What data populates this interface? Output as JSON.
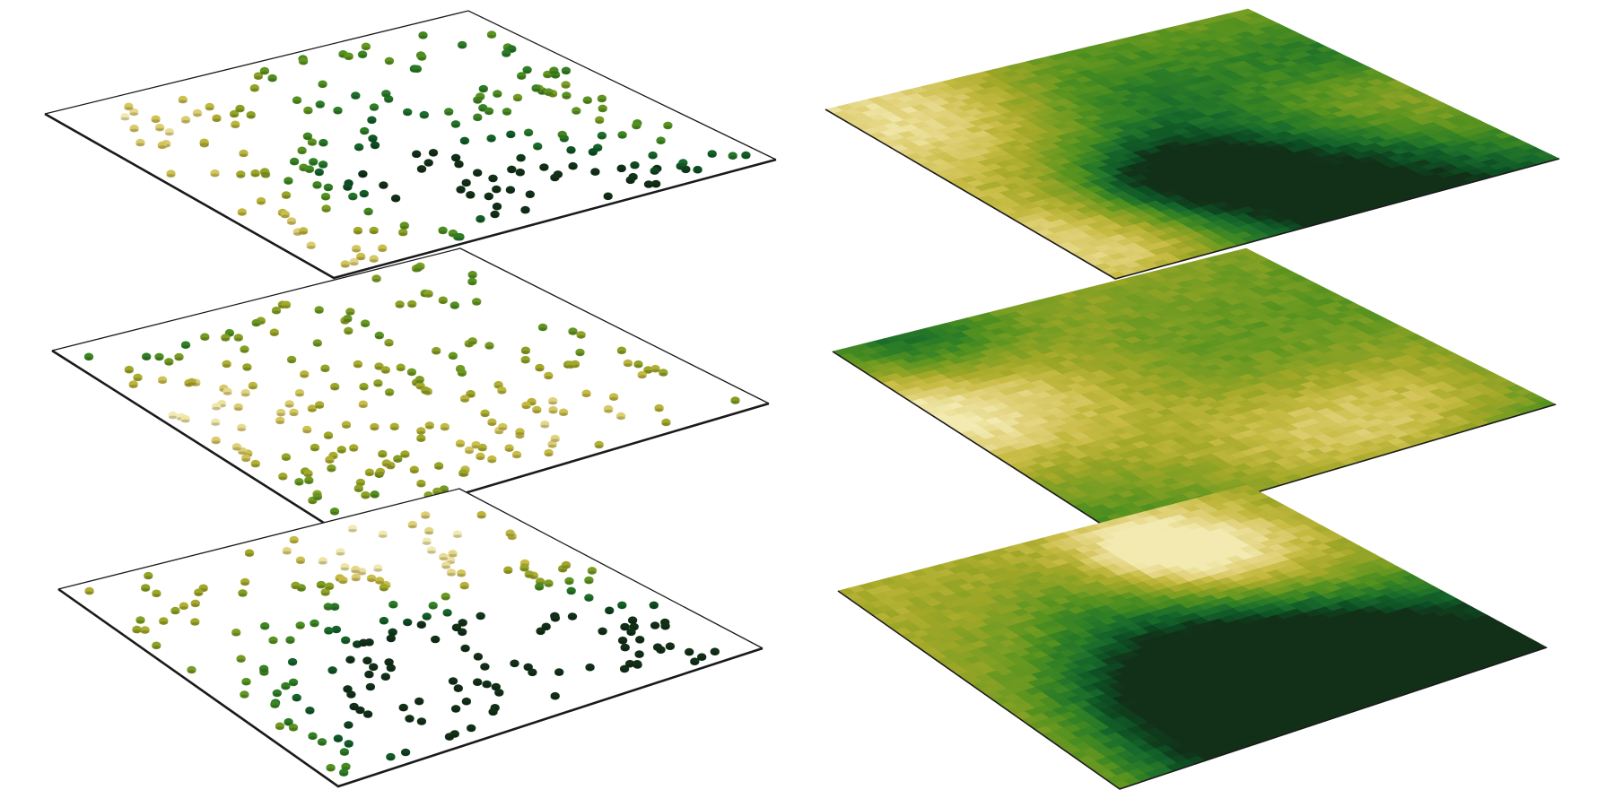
{
  "figure": {
    "description_visible_text": "",
    "left_column": {
      "kind": "point-sample-layers",
      "layer_count": 3,
      "palette": [
        "#f2eab0",
        "#e2d27c",
        "#c8bc45",
        "#a3a828",
        "#7f9f24",
        "#55921f",
        "#2f7f26",
        "#186a2c",
        "#0d4f24",
        "#123018"
      ],
      "frame_color": "#1a1a1a"
    },
    "right_column": {
      "kind": "continuous-raster-layers",
      "layer_count": 3,
      "grid_cells": 40,
      "palette": [
        "#f2eab0",
        "#e2d27c",
        "#c8bc45",
        "#a3a828",
        "#7f9f24",
        "#55921f",
        "#2f7f26",
        "#186a2c",
        "#0d4f24",
        "#123018"
      ],
      "frame_color": "#1a1a1a"
    }
  }
}
